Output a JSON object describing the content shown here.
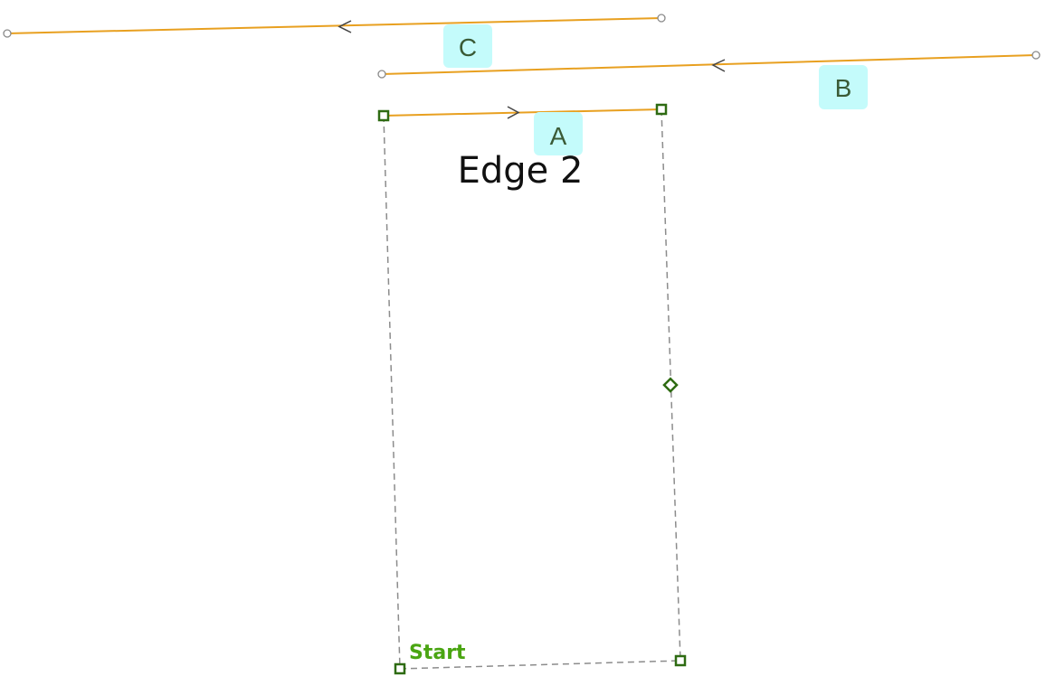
{
  "colors": {
    "segment": "#e8a020",
    "label_bg": "#c4fbfb",
    "label_text": "#3a5a36",
    "vertex_green": "#2e6b12",
    "dash": "#8c8c8c",
    "start_text": "#4aa512",
    "edge_text": "#111111",
    "open_vertex": "#8a8a8a"
  },
  "segments": [
    {
      "id": "C",
      "label": "C",
      "direction": "right-to-left"
    },
    {
      "id": "B",
      "label": "B",
      "direction": "right-to-left"
    },
    {
      "id": "A",
      "label": "A",
      "direction": "left-to-right"
    }
  ],
  "annotation": {
    "edge_label": "Edge 2"
  },
  "polygon": {
    "start_label": "Start",
    "vertex_shape": "square",
    "midpoint_shape": "diamond"
  }
}
